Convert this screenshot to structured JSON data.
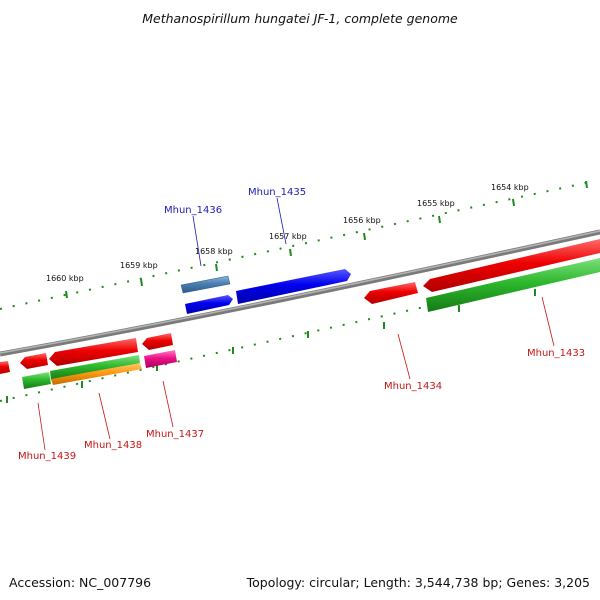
{
  "title": "Methanospirillum hungatei JF-1, complete genome",
  "footer": {
    "accession": "Accession: NC_007796",
    "topology": "Topology: circular; Length: 3,544,738 bp; Genes: 3,205"
  },
  "ruler": [
    "1654 kbp",
    "1655 kbp",
    "1656 kbp",
    "1657 kbp",
    "1658 kbp",
    "1659 kbp",
    "1660 kbp"
  ],
  "genes": [
    "Mhun_1433",
    "Mhun_1434",
    "Mhun_1435",
    "Mhun_1436",
    "Mhun_1437",
    "Mhun_1438",
    "Mhun_1439"
  ],
  "colors": {
    "label_forward": "#1c1cb4",
    "label_reverse": "#c81414",
    "backbone": "#8a8a8a",
    "ticks": "#1f8a1f"
  }
}
